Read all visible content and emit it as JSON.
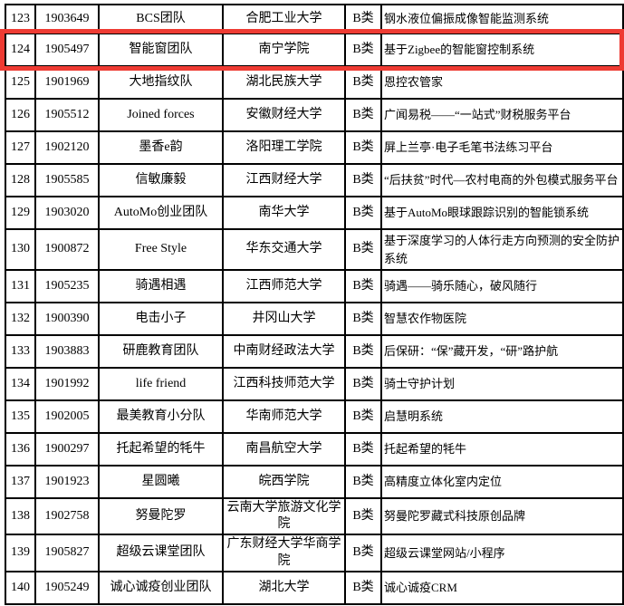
{
  "page": {
    "background_color": "#ffffff",
    "grid_line_color": "#000000"
  },
  "highlight": {
    "row_serial": "124",
    "border_color": "#ee3b33"
  },
  "table": {
    "rows": [
      {
        "serial": "123",
        "team_id": "1903649",
        "team_name": "BCS团队",
        "university": "合肥工业大学",
        "category": "B类",
        "project": "钢水液位偏振成像智能监测系统"
      },
      {
        "serial": "124",
        "team_id": "1905497",
        "team_name": "智能窗团队",
        "university": "南宁学院",
        "category": "B类",
        "project": "基于Zigbee的智能窗控制系统"
      },
      {
        "serial": "125",
        "team_id": "1901969",
        "team_name": "大地指纹队",
        "university": "湖北民族大学",
        "category": "B类",
        "project": "恩控农管家"
      },
      {
        "serial": "126",
        "team_id": "1905512",
        "team_name": "Joined forces",
        "university": "安徽财经大学",
        "category": "B类",
        "project": "广闻易税——“一站式”财税服务平台"
      },
      {
        "serial": "127",
        "team_id": "1902120",
        "team_name": "墨香e韵",
        "university": "洛阳理工学院",
        "category": "B类",
        "project": "屏上兰亭·电子毛笔书法练习平台"
      },
      {
        "serial": "128",
        "team_id": "1905585",
        "team_name": "信敏廉毅",
        "university": "江西财经大学",
        "category": "B类",
        "project": "“后扶贫”时代—农村电商的外包模式服务平台"
      },
      {
        "serial": "129",
        "team_id": "1903020",
        "team_name": "AutoMo创业团队",
        "university": "南华大学",
        "category": "B类",
        "project": "基于AutoMo眼球跟踪识别的智能锁系统"
      },
      {
        "serial": "130",
        "team_id": "1900872",
        "team_name": "Free Style",
        "university": "华东交通大学",
        "category": "B类",
        "project": "基于深度学习的人体行走方向预测的安全防护系统"
      },
      {
        "serial": "131",
        "team_id": "1905235",
        "team_name": "骑遇相遇",
        "university": "江西师范大学",
        "category": "B类",
        "project": "骑遇——骑乐随心，破风随行"
      },
      {
        "serial": "132",
        "team_id": "1900390",
        "team_name": "电击小子",
        "university": "井冈山大学",
        "category": "B类",
        "project": "智慧农作物医院"
      },
      {
        "serial": "133",
        "team_id": "1903883",
        "team_name": "研鹿教育团队",
        "university": "中南财经政法大学",
        "category": "B类",
        "project": "后保研：“保”藏开发，“研”路护航"
      },
      {
        "serial": "134",
        "team_id": "1901992",
        "team_name": "life friend",
        "university": "江西科技师范大学",
        "category": "B类",
        "project": "骑士守护计划"
      },
      {
        "serial": "135",
        "team_id": "1902005",
        "team_name": "最美教育小分队",
        "university": "华南师范大学",
        "category": "B类",
        "project": "启慧明系统"
      },
      {
        "serial": "136",
        "team_id": "1900297",
        "team_name": "托起希望的牦牛",
        "university": "南昌航空大学",
        "category": "B类",
        "project": "托起希望的牦牛"
      },
      {
        "serial": "137",
        "team_id": "1901923",
        "team_name": "星圆曦",
        "university": "皖西学院",
        "category": "B类",
        "project": "高精度立体化室内定位"
      },
      {
        "serial": "138",
        "team_id": "1902758",
        "team_name": "努曼陀罗",
        "university": "云南大学旅游文化学院",
        "category": "B类",
        "project": "努曼陀罗藏式科技原创品牌"
      },
      {
        "serial": "139",
        "team_id": "1905827",
        "team_name": "超级云课堂团队",
        "university": "广东财经大学华商学院",
        "category": "B类",
        "project": "超级云课堂网站/小程序"
      },
      {
        "serial": "140",
        "team_id": "1905249",
        "team_name": "诚心诚疫创业团队",
        "university": "湖北大学",
        "category": "B类",
        "project": "诚心诚疫CRM"
      }
    ]
  }
}
